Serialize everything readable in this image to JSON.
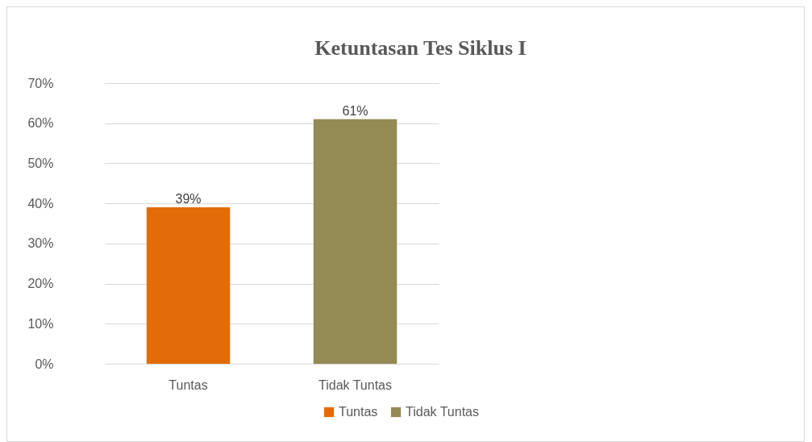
{
  "chart_data": {
    "type": "bar",
    "title": "Ketuntasan Tes Siklus I",
    "categories": [
      "Tuntas",
      "Tidak Tuntas"
    ],
    "series": [
      {
        "name": "Tuntas",
        "color": "#e36c0a",
        "values": [
          39,
          null
        ],
        "value_labels": [
          "39%",
          null
        ]
      },
      {
        "name": "Tidak Tuntas",
        "color": "#948a54",
        "values": [
          null,
          61
        ],
        "value_labels": [
          null,
          "61%"
        ]
      }
    ],
    "ylim": [
      0,
      70
    ],
    "yticks": [
      {
        "value": 0,
        "label": "0%"
      },
      {
        "value": 10,
        "label": "10%"
      },
      {
        "value": 20,
        "label": "20%"
      },
      {
        "value": 30,
        "label": "30%"
      },
      {
        "value": 40,
        "label": "40%"
      },
      {
        "value": 50,
        "label": "50%"
      },
      {
        "value": 60,
        "label": "60%"
      },
      {
        "value": 70,
        "label": "70%"
      }
    ],
    "grid": "y",
    "legend": "bottom"
  }
}
